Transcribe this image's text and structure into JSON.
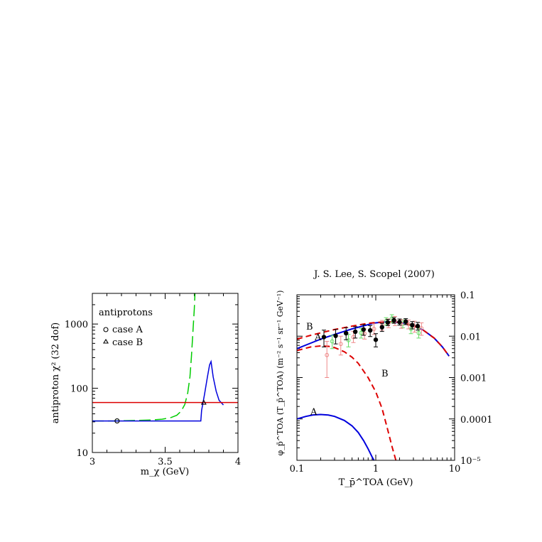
{
  "header": {
    "citation": "J. S. Lee, S. Scopel (2007)"
  },
  "chart_data": [
    {
      "type": "line",
      "title": "",
      "xlabel": "m_χ (GeV)",
      "ylabel": "antiproton χ² (32 dof)",
      "xlim": [
        3,
        4
      ],
      "ylim": [
        10,
        3000
      ],
      "y_scale": "log",
      "grid": false,
      "legend_position": "top-left",
      "legend_title": "antiprotons",
      "x_ticks": [
        "3",
        "3.5",
        "4"
      ],
      "y_ticks": [
        "10",
        "100",
        "1000"
      ],
      "series": [
        {
          "name": "",
          "color": "#00cc00",
          "style": "long-dashed",
          "x": [
            3.0,
            3.15,
            3.3,
            3.4,
            3.48,
            3.54,
            3.58,
            3.61,
            3.635,
            3.655,
            3.67,
            3.68,
            3.69,
            3.7,
            3.705
          ],
          "y": [
            31,
            31,
            31.5,
            32,
            33,
            35,
            38,
            44,
            56,
            85,
            150,
            300,
            700,
            1700,
            3000
          ]
        },
        {
          "name": "",
          "color": "#0000dd",
          "style": "solid",
          "x": [
            3.0,
            3.2,
            3.4,
            3.6,
            3.7,
            3.745,
            3.75,
            3.77,
            3.79,
            3.805,
            3.815,
            3.83,
            3.85,
            3.87,
            3.9
          ],
          "y": [
            31,
            31,
            31,
            31,
            31,
            31,
            45,
            80,
            150,
            230,
            260,
            150,
            90,
            65,
            55
          ]
        },
        {
          "name": "",
          "color": "#dd0000",
          "style": "solid",
          "x": [
            3.0,
            4.0
          ],
          "y": [
            60,
            60
          ]
        }
      ],
      "markers": [
        {
          "label": "case A",
          "symbol": "circle",
          "x": 3.17,
          "y": 31
        },
        {
          "label": "case B",
          "symbol": "triangle",
          "x": 3.765,
          "y": 60
        }
      ]
    },
    {
      "type": "line",
      "title": "",
      "xlabel": "T_p̄^TOA (GeV)",
      "ylabel": "φ_p̄^TOA (T_p̄^TOA) (m⁻² s⁻¹ sr⁻¹ GeV⁻¹)",
      "xlim": [
        0.1,
        10
      ],
      "ylim": [
        1e-05,
        0.1
      ],
      "x_scale": "log",
      "y_scale": "log",
      "grid": false,
      "x_ticks": [
        "0.1",
        "1",
        "10"
      ],
      "y_ticks_right": [
        "10⁻⁵",
        "0.0001",
        "0.001",
        "0.01",
        "0.1"
      ],
      "curve_labels": [
        "A",
        "A",
        "B",
        "B"
      ],
      "series": [
        {
          "name": "",
          "color": "#0000dd",
          "style": "solid",
          "x": [
            0.1,
            0.15,
            0.2,
            0.3,
            0.5,
            0.8,
            1.0,
            1.3,
            1.7,
            2.2,
            3.0,
            4.0,
            5.5,
            7.0,
            8.5
          ],
          "y": [
            0.005,
            0.0068,
            0.0085,
            0.011,
            0.015,
            0.019,
            0.021,
            0.022,
            0.022,
            0.021,
            0.018,
            0.014,
            0.009,
            0.0055,
            0.0033
          ]
        },
        {
          "name": "",
          "color": "#dd0000",
          "style": "dashed",
          "x": [
            0.1,
            0.15,
            0.2,
            0.3,
            0.5,
            0.8,
            1.0,
            1.3,
            1.7,
            2.2,
            3.0,
            4.0,
            5.5,
            7.0,
            8.5
          ],
          "y": [
            0.0085,
            0.0105,
            0.012,
            0.0145,
            0.0175,
            0.0205,
            0.0215,
            0.022,
            0.022,
            0.021,
            0.018,
            0.014,
            0.009,
            0.0055,
            0.0033
          ]
        },
        {
          "name": "",
          "color": "#dd0000",
          "style": "dashed",
          "x": [
            0.1,
            0.15,
            0.2,
            0.25,
            0.3,
            0.4,
            0.5,
            0.6,
            0.8,
            1.0,
            1.2,
            1.4,
            1.6,
            1.8
          ],
          "y": [
            0.0045,
            0.0055,
            0.0058,
            0.0057,
            0.0053,
            0.0042,
            0.0031,
            0.0022,
            0.001,
            0.00045,
            0.00018,
            6e-05,
            2.2e-05,
            1e-05
          ]
        },
        {
          "name": "",
          "color": "#0000dd",
          "style": "solid",
          "x": [
            0.1,
            0.13,
            0.16,
            0.2,
            0.25,
            0.3,
            0.4,
            0.5,
            0.6,
            0.7,
            0.8,
            0.9,
            0.95
          ],
          "y": [
            0.0001,
            0.000115,
            0.000125,
            0.000128,
            0.000124,
            0.000115,
            9.2e-05,
            6.8e-05,
            4.7e-05,
            3e-05,
            1.9e-05,
            1.2e-05,
            1e-05
          ]
        }
      ],
      "data_points": [
        {
          "color": "#000000",
          "marker": "filled-circle",
          "x": [
            0.22,
            0.31,
            0.42,
            0.55,
            0.7,
            0.85,
            1.0,
            1.2,
            1.42,
            1.7,
            2.0,
            2.4,
            2.9,
            3.4
          ],
          "y": [
            0.0095,
            0.0102,
            0.0118,
            0.0128,
            0.0145,
            0.0138,
            0.0082,
            0.0165,
            0.0215,
            0.024,
            0.022,
            0.0225,
            0.0185,
            0.0175
          ],
          "lo": [
            0.0055,
            0.0065,
            0.0082,
            0.009,
            0.0105,
            0.0098,
            0.0055,
            0.013,
            0.018,
            0.0205,
            0.0185,
            0.019,
            0.015,
            0.014
          ],
          "hi": [
            0.014,
            0.0145,
            0.016,
            0.017,
            0.019,
            0.018,
            0.0115,
            0.0205,
            0.0255,
            0.028,
            0.026,
            0.0265,
            0.0225,
            0.0215
          ]
        },
        {
          "color": "#ee8888",
          "marker": "open-circle",
          "x": [
            0.24,
            0.36,
            0.52,
            0.72,
            0.95,
            1.2,
            1.45,
            1.75,
            2.1,
            2.6,
            3.1,
            3.8
          ],
          "y": [
            0.0035,
            0.0065,
            0.0095,
            0.0115,
            0.015,
            0.0185,
            0.0205,
            0.0235,
            0.02,
            0.0195,
            0.0175,
            0.0155
          ],
          "lo": [
            0.001,
            0.0035,
            0.007,
            0.0085,
            0.011,
            0.014,
            0.016,
            0.018,
            0.0155,
            0.015,
            0.0125,
            0.0105
          ],
          "hi": [
            0.0075,
            0.01,
            0.013,
            0.015,
            0.02,
            0.024,
            0.026,
            0.03,
            0.025,
            0.0245,
            0.023,
            0.021
          ]
        },
        {
          "color": "#66dd66",
          "marker": "open-circle",
          "x": [
            0.28,
            0.45,
            0.65,
            1.35,
            1.6,
            2.2,
            2.8,
            3.5
          ],
          "y": [
            0.0075,
            0.008,
            0.012,
            0.023,
            0.027,
            0.02,
            0.015,
            0.012
          ],
          "lo": [
            0.005,
            0.0055,
            0.009,
            0.0185,
            0.0215,
            0.016,
            0.0115,
            0.009
          ],
          "hi": [
            0.0105,
            0.011,
            0.0155,
            0.028,
            0.033,
            0.025,
            0.0195,
            0.0155
          ]
        }
      ]
    }
  ]
}
